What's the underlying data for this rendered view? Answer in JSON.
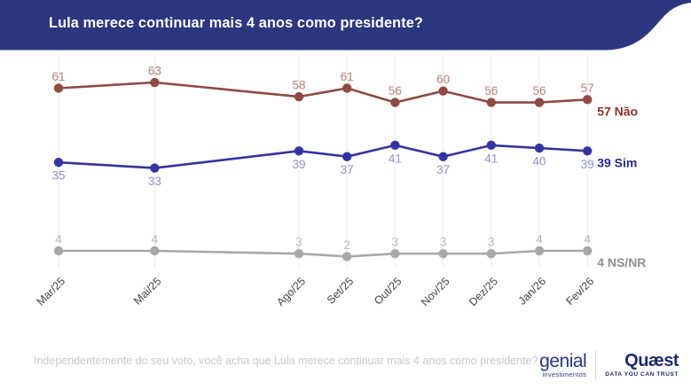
{
  "header": {
    "title": "Lula merece continuar mais 4 anos como presidente?"
  },
  "chart_data": {
    "type": "line",
    "title": "Lula merece continuar mais 4 anos como presidente?",
    "categories": [
      "Mar/25",
      "Mai/25",
      "Ago/25",
      "Set/25",
      "Out/25",
      "Nov/25",
      "Dez/25",
      "Jan/26",
      "Fev/26"
    ],
    "month_offsets": [
      0,
      2,
      5,
      6,
      7,
      8,
      9,
      10,
      11
    ],
    "series": [
      {
        "name": "Não",
        "values": [
          61,
          63,
          58,
          61,
          56,
          60,
          56,
          56,
          57
        ],
        "color": "#8f4a44",
        "label_color": "#b3827d",
        "end_label": "57 Não",
        "end_label_color": "#8b332e",
        "label_position": "above"
      },
      {
        "name": "Sim",
        "values": [
          35,
          33,
          39,
          37,
          41,
          37,
          41,
          40,
          39
        ],
        "color": "#3434a0",
        "label_color": "#9191c4",
        "end_label": "39 Sim",
        "end_label_color": "#2b2b8e",
        "label_position": "below"
      },
      {
        "name": "NS/NR",
        "values": [
          4,
          4,
          3,
          2,
          3,
          3,
          3,
          4,
          4
        ],
        "color": "#a8a8a8",
        "label_color": "#b8b8b8",
        "end_label": "4 NS/NR",
        "end_label_color": "#909090",
        "label_position": "above"
      }
    ],
    "ylim": [
      0,
      70
    ],
    "grid": "vertical",
    "colors": {
      "grid": "#e9e9e9",
      "tick_label": "#454545"
    },
    "legend_position": "right-of-last-point"
  },
  "footer": {
    "question": "Independentemente do seu voto, você acha que Lula merece continuar mais 4 anos como presidente?"
  },
  "logos": {
    "genial": {
      "name": "genial",
      "sub": "investimentos"
    },
    "quaest": {
      "name": "Quæst",
      "sub": "DATA YOU CAN TRUST"
    }
  },
  "colors": {
    "header_bg": "#2c3780",
    "brand_navy": "#2b3580"
  }
}
